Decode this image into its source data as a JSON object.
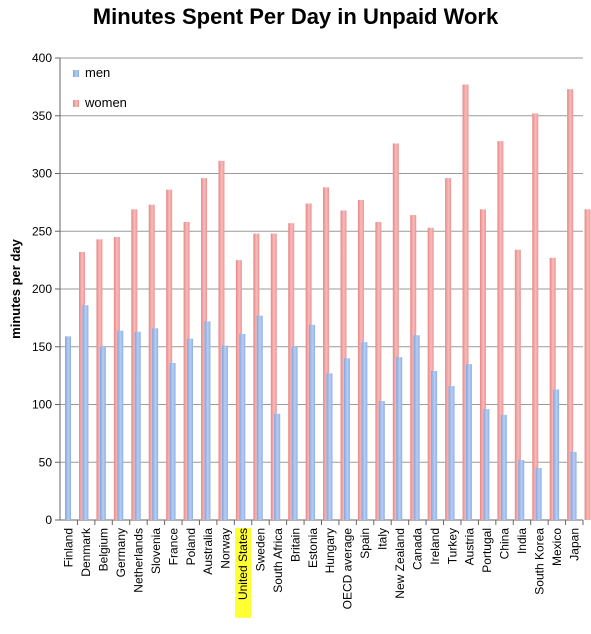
{
  "chart_data": {
    "type": "bar",
    "title": "Minutes Spent Per Day in Unpaid Work",
    "xlabel": "",
    "ylabel": "minutes per day",
    "ylim": [
      0,
      400
    ],
    "yticks": [
      0,
      50,
      100,
      150,
      200,
      250,
      300,
      350,
      400
    ],
    "grid": true,
    "legend_position": "top-left",
    "highlighted_category": "United States",
    "highlight_color": "#ffff33",
    "categories": [
      "Finland",
      "Denmark",
      "Belgium",
      "Germany",
      "Netherlands",
      "Slovenia",
      "France",
      "Poland",
      "Australia",
      "Norway",
      "United States",
      "Sweden",
      "South Africa",
      "Britain",
      "Estonia",
      "Hungary",
      "OECD average",
      "Spain",
      "Italy",
      "New Zealand",
      "Canada",
      "Ireland",
      "Turkey",
      "Austria",
      "Portugal",
      "China",
      "India",
      "South Korea",
      "Mexico",
      "Japan"
    ],
    "series": [
      {
        "name": "men",
        "color": "#9db9e8",
        "values": [
          159,
          186,
          150,
          164,
          163,
          166,
          136,
          157,
          172,
          151,
          161,
          177,
          92,
          150,
          169,
          127,
          140,
          154,
          103,
          141,
          160,
          129,
          116,
          135,
          96,
          91,
          52,
          45,
          113,
          59
        ]
      },
      {
        "name": "women",
        "color": "#f4a3a3",
        "values": [
          232,
          243,
          245,
          269,
          273,
          286,
          258,
          296,
          311,
          225,
          248,
          248,
          257,
          274,
          288,
          268,
          277,
          258,
          326,
          264,
          253,
          296,
          377,
          269,
          328,
          234,
          352,
          227,
          373,
          269
        ]
      }
    ]
  }
}
